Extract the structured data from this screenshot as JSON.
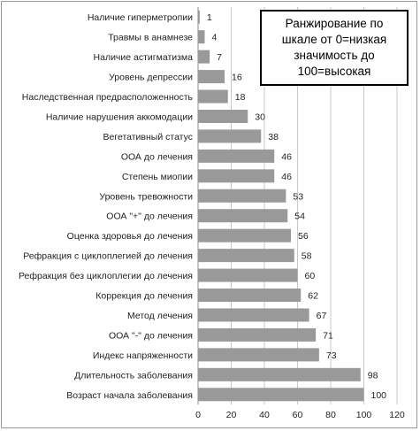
{
  "chart_data": {
    "type": "bar",
    "orientation": "horizontal",
    "categories": [
      "Наличие гиперметропии",
      "Травмы в анамнезе",
      "Наличие астигматизма",
      "Уровень депрессии",
      "Наследственная предрасположенность",
      "Наличие нарушения аккомодации",
      "Вегетативный статус",
      "ООА до лечения",
      "Степень миопии",
      "Уровень тревожности",
      "ООА \"+\" до лечения",
      "Оценка здоровья до лечения",
      "Рефракция с циклоплегией до лечения",
      "Рефракция без циклоплегии до лечения",
      "Коррекция до лечения",
      "Метод лечения",
      "ООА \"-\" до лечения",
      "Индекс напряженности",
      "Длительность заболевания",
      "Возраст начала заболевания"
    ],
    "values": [
      1,
      4,
      7,
      16,
      18,
      30,
      38,
      46,
      46,
      53,
      54,
      56,
      58,
      60,
      62,
      67,
      71,
      73,
      98,
      100
    ],
    "x_ticks": [
      "0",
      "20",
      "40",
      "60",
      "80",
      "100",
      "120"
    ],
    "xlim": [
      0,
      120
    ],
    "grid": "vertical",
    "bar_color": "#999999",
    "annotation": "Ранжирование по шкале от 0=низкая значимость до 100=высокая"
  }
}
